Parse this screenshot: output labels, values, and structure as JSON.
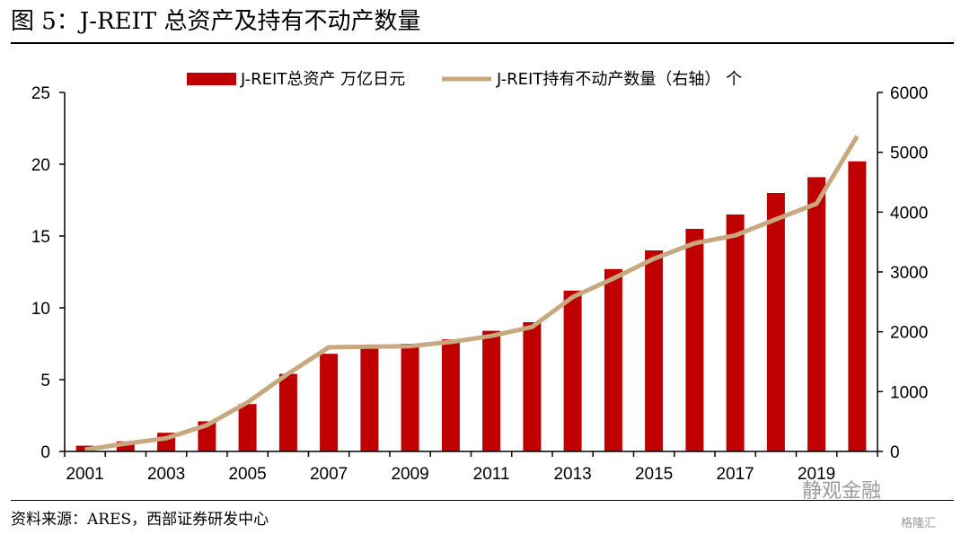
{
  "header": {
    "title": "图 5：J-REIT 总资产及持有不动产数量"
  },
  "footer": {
    "source": "资料来源：ARES，西部证券研发中心"
  },
  "watermarks": {
    "main": "静观金融",
    "corner": "格隆汇"
  },
  "colors": {
    "bar": "#C00000",
    "line": "#C7A87F",
    "axis": "#000000"
  },
  "chart_data": {
    "type": "bar",
    "categories": [
      "2001",
      "2002",
      "2003",
      "2004",
      "2005",
      "2006",
      "2007",
      "2008",
      "2009",
      "2010",
      "2011",
      "2012",
      "2013",
      "2014",
      "2015",
      "2016",
      "2017",
      "2018",
      "2019",
      "2020"
    ],
    "x_tick_labels": [
      "2001",
      "2003",
      "2005",
      "2007",
      "2009",
      "2011",
      "2013",
      "2015",
      "2017",
      "2019"
    ],
    "series": [
      {
        "name": "J-REIT总资产 万亿日元",
        "type": "bar",
        "axis": "left",
        "values": [
          0.4,
          0.7,
          1.3,
          2.1,
          3.3,
          5.4,
          6.8,
          7.4,
          7.5,
          7.8,
          8.4,
          9.0,
          11.2,
          12.7,
          14.0,
          15.5,
          16.5,
          18.0,
          19.1,
          20.2
        ]
      },
      {
        "name": "J-REIT持有不动产数量（右轴） 个",
        "type": "line",
        "axis": "right",
        "values": [
          30,
          130,
          220,
          440,
          820,
          1300,
          1740,
          1750,
          1760,
          1830,
          1930,
          2080,
          2580,
          2890,
          3220,
          3480,
          3610,
          3880,
          4140,
          5270
        ]
      }
    ],
    "y_left": {
      "min": 0,
      "max": 25,
      "ticks": [
        0,
        5,
        10,
        15,
        20,
        25
      ]
    },
    "y_right": {
      "min": 0,
      "max": 6000,
      "ticks": [
        0,
        1000,
        2000,
        3000,
        4000,
        5000,
        6000
      ]
    },
    "grid": false,
    "legend_position": "top"
  }
}
